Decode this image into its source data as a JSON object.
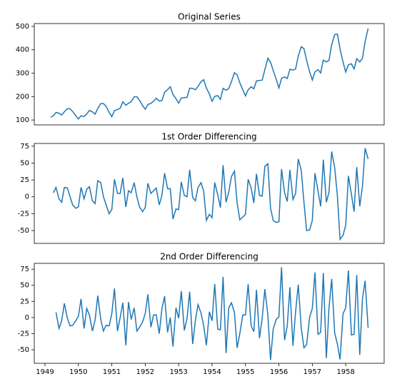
{
  "chart_data": [
    {
      "type": "line",
      "title": "Original Series",
      "color": "#1f77b4",
      "xlim": [
        1948.68,
        1959.15
      ],
      "ylim": [
        79,
        512
      ],
      "yticks": [
        100,
        200,
        300,
        400,
        500
      ],
      "x": [
        1949.17,
        1949.25,
        1949.33,
        1949.42,
        1949.5,
        1949.58,
        1949.67,
        1949.75,
        1949.83,
        1949.92,
        1950,
        1950.08,
        1950.17,
        1950.25,
        1950.33,
        1950.42,
        1950.5,
        1950.58,
        1950.67,
        1950.75,
        1950.83,
        1950.92,
        1951,
        1951.08,
        1951.17,
        1951.25,
        1951.33,
        1951.42,
        1951.5,
        1951.58,
        1951.67,
        1951.75,
        1951.83,
        1951.92,
        1952,
        1952.08,
        1952.17,
        1952.25,
        1952.33,
        1952.42,
        1952.5,
        1952.58,
        1952.67,
        1952.75,
        1952.83,
        1952.92,
        1953,
        1953.08,
        1953.17,
        1953.25,
        1953.33,
        1953.42,
        1953.5,
        1953.58,
        1953.67,
        1953.75,
        1953.83,
        1953.92,
        1954,
        1954.08,
        1954.17,
        1954.25,
        1954.33,
        1954.42,
        1954.5,
        1954.58,
        1954.67,
        1954.75,
        1954.83,
        1954.92,
        1955,
        1955.08,
        1955.17,
        1955.25,
        1955.33,
        1955.42,
        1955.5,
        1955.58,
        1955.67,
        1955.75,
        1955.83,
        1955.92,
        1956,
        1956.08,
        1956.17,
        1956.25,
        1956.33,
        1956.42,
        1956.5,
        1956.58,
        1956.67,
        1956.75,
        1956.83,
        1956.92,
        1957,
        1957.08,
        1957.17,
        1957.25,
        1957.33,
        1957.42,
        1957.5,
        1957.58,
        1957.67,
        1957.75,
        1957.83,
        1957.92,
        1958,
        1958.08,
        1958.17,
        1958.25,
        1958.33,
        1958.42,
        1958.5,
        1958.58,
        1958.67
      ],
      "values": [
        112,
        118,
        132,
        129,
        121,
        135,
        148,
        148,
        136,
        119,
        104,
        118,
        115,
        126,
        141,
        135,
        125,
        149,
        170,
        170,
        158,
        133,
        114,
        140,
        145,
        150,
        178,
        163,
        172,
        178,
        199,
        199,
        184,
        162,
        146,
        166,
        171,
        180,
        193,
        181,
        183,
        218,
        230,
        242,
        209,
        191,
        172,
        194,
        196,
        196,
        236,
        235,
        229,
        243,
        264,
        272,
        237,
        211,
        180,
        201,
        204,
        188,
        235,
        227,
        234,
        264,
        302,
        293,
        259,
        229,
        203,
        229,
        242,
        233,
        267,
        269,
        270,
        315,
        364,
        347,
        312,
        274,
        237,
        278,
        284,
        277,
        317,
        313,
        318,
        374,
        413,
        405,
        355,
        306,
        271,
        306,
        315,
        301,
        356,
        348,
        355,
        422,
        465,
        467,
        404,
        347,
        305,
        336,
        340,
        318,
        362,
        348,
        363,
        435,
        491
      ]
    },
    {
      "type": "line",
      "title": "1st Order Differencing",
      "color": "#1f77b4",
      "xlim": [
        1948.68,
        1959.15
      ],
      "ylim": [
        -69,
        79
      ],
      "yticks": [
        -50,
        -25,
        0,
        25,
        50,
        75
      ],
      "x": [
        1949.25,
        1949.33,
        1949.42,
        1949.5,
        1949.58,
        1949.67,
        1949.75,
        1949.83,
        1949.92,
        1950,
        1950.08,
        1950.17,
        1950.25,
        1950.33,
        1950.42,
        1950.5,
        1950.58,
        1950.67,
        1950.75,
        1950.83,
        1950.92,
        1951,
        1951.08,
        1951.17,
        1951.25,
        1951.33,
        1951.42,
        1951.5,
        1951.58,
        1951.67,
        1951.75,
        1951.83,
        1951.92,
        1952,
        1952.08,
        1952.17,
        1952.25,
        1952.33,
        1952.42,
        1952.5,
        1952.58,
        1952.67,
        1952.75,
        1952.83,
        1952.92,
        1953,
        1953.08,
        1953.17,
        1953.25,
        1953.33,
        1953.42,
        1953.5,
        1953.58,
        1953.67,
        1953.75,
        1953.83,
        1953.92,
        1954,
        1954.08,
        1954.17,
        1954.25,
        1954.33,
        1954.42,
        1954.5,
        1954.58,
        1954.67,
        1954.75,
        1954.83,
        1954.92,
        1955,
        1955.08,
        1955.17,
        1955.25,
        1955.33,
        1955.42,
        1955.5,
        1955.58,
        1955.67,
        1955.75,
        1955.83,
        1955.92,
        1956,
        1956.08,
        1956.17,
        1956.25,
        1956.33,
        1956.42,
        1956.5,
        1956.58,
        1956.67,
        1956.75,
        1956.83,
        1956.92,
        1957,
        1957.08,
        1957.17,
        1957.25,
        1957.33,
        1957.42,
        1957.5,
        1957.58,
        1957.67,
        1957.75,
        1957.83,
        1957.92,
        1958,
        1958.08,
        1958.17,
        1958.25,
        1958.33,
        1958.42,
        1958.5,
        1958.58,
        1958.67
      ],
      "values": [
        6,
        14,
        -3,
        -8,
        14,
        13,
        0,
        -12,
        -17,
        -15,
        14,
        -3,
        11,
        15,
        -6,
        -10,
        24,
        21,
        0,
        -12,
        -25,
        -19,
        26,
        5,
        5,
        28,
        -15,
        9,
        6,
        21,
        0,
        -15,
        -22,
        -16,
        20,
        5,
        9,
        13,
        -12,
        2,
        35,
        12,
        12,
        -33,
        -18,
        -19,
        22,
        2,
        0,
        40,
        -1,
        -6,
        14,
        21,
        8,
        -35,
        -26,
        -31,
        21,
        3,
        -16,
        47,
        -8,
        7,
        30,
        38,
        -9,
        -34,
        -30,
        -26,
        26,
        13,
        -9,
        34,
        2,
        1,
        45,
        49,
        -17,
        -35,
        -38,
        -37,
        41,
        6,
        -7,
        40,
        -4,
        5,
        56,
        39,
        -8,
        -50,
        -49,
        -35,
        35,
        9,
        -14,
        55,
        -8,
        7,
        67,
        43,
        2,
        -63,
        -57,
        -42,
        31,
        4,
        -22,
        44,
        -14,
        15,
        72,
        56
      ]
    },
    {
      "type": "line",
      "title": "2nd Order Differencing",
      "color": "#1f77b4",
      "xlim": [
        1948.68,
        1959.15
      ],
      "ylim": [
        -71,
        84
      ],
      "yticks": [
        -50,
        -25,
        0,
        25,
        50,
        75
      ],
      "xticks": [
        1949,
        1950,
        1951,
        1952,
        1953,
        1954,
        1955,
        1956,
        1957,
        1958
      ],
      "x": [
        1949.33,
        1949.42,
        1949.5,
        1949.58,
        1949.67,
        1949.75,
        1949.83,
        1949.92,
        1950,
        1950.08,
        1950.17,
        1950.25,
        1950.33,
        1950.42,
        1950.5,
        1950.58,
        1950.67,
        1950.75,
        1950.83,
        1950.92,
        1951,
        1951.08,
        1951.17,
        1951.25,
        1951.33,
        1951.42,
        1951.5,
        1951.58,
        1951.67,
        1951.75,
        1951.83,
        1951.92,
        1952,
        1952.08,
        1952.17,
        1952.25,
        1952.33,
        1952.42,
        1952.5,
        1952.58,
        1952.67,
        1952.75,
        1952.83,
        1952.92,
        1953,
        1953.08,
        1953.17,
        1953.25,
        1953.33,
        1953.42,
        1953.5,
        1953.58,
        1953.67,
        1953.75,
        1953.83,
        1953.92,
        1954,
        1954.08,
        1954.17,
        1954.25,
        1954.33,
        1954.42,
        1954.5,
        1954.58,
        1954.67,
        1954.75,
        1954.83,
        1954.92,
        1955,
        1955.08,
        1955.17,
        1955.25,
        1955.33,
        1955.42,
        1955.5,
        1955.58,
        1955.67,
        1955.75,
        1955.83,
        1955.92,
        1956,
        1956.08,
        1956.17,
        1956.25,
        1956.33,
        1956.42,
        1956.5,
        1956.58,
        1956.67,
        1956.75,
        1956.83,
        1956.92,
        1957,
        1957.08,
        1957.17,
        1957.25,
        1957.33,
        1957.42,
        1957.5,
        1957.58,
        1957.67,
        1957.75,
        1957.83,
        1957.92,
        1958,
        1958.08,
        1958.17,
        1958.25,
        1958.33,
        1958.42,
        1958.5,
        1958.58,
        1958.67
      ],
      "values": [
        8,
        -17,
        -5,
        22,
        -1,
        -13,
        -12,
        -5,
        2,
        29,
        -17,
        14,
        4,
        -21,
        -4,
        34,
        -3,
        -21,
        -12,
        -13,
        6,
        45,
        -21,
        0,
        23,
        -43,
        24,
        -3,
        15,
        -21,
        -15,
        -7,
        6,
        36,
        -15,
        4,
        4,
        -25,
        14,
        33,
        -23,
        0,
        -45,
        15,
        -1,
        41,
        -20,
        -2,
        40,
        -41,
        -5,
        20,
        7,
        -13,
        -43,
        9,
        -5,
        52,
        -18,
        -19,
        63,
        -55,
        15,
        23,
        8,
        -47,
        -25,
        4,
        4,
        52,
        -13,
        -22,
        43,
        -32,
        -1,
        44,
        4,
        -66,
        -18,
        -3,
        1,
        78,
        -35,
        -13,
        47,
        -44,
        9,
        51,
        -17,
        -47,
        -42,
        1,
        14,
        70,
        -26,
        -23,
        69,
        -63,
        15,
        60,
        -24,
        -41,
        -65,
        6,
        15,
        73,
        -27,
        -26,
        66,
        -58,
        29,
        57,
        -16
      ]
    }
  ]
}
